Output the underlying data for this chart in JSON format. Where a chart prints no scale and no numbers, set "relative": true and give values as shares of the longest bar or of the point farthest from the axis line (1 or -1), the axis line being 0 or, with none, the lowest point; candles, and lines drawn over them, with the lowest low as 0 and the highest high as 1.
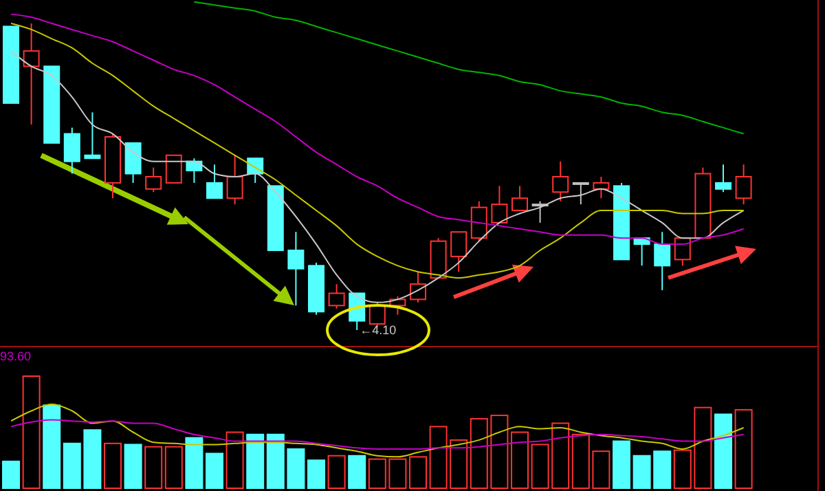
{
  "chart_data": [
    {
      "type": "candlestick",
      "relative": true,
      "categories": [
        null,
        null,
        null,
        null,
        null,
        null,
        null,
        null,
        null,
        null,
        null,
        null,
        null,
        null,
        null,
        null,
        null,
        null,
        null,
        null,
        null,
        null,
        null,
        null,
        null,
        null,
        null,
        null,
        null,
        null,
        null,
        null,
        null,
        null,
        null,
        null,
        null
      ],
      "ohlc": [
        [
          0.99,
          0.99,
          0.74,
          0.74
        ],
        [
          0.86,
          1,
          0.67,
          0.91
        ],
        [
          0.86,
          0.86,
          0.61,
          0.61
        ],
        [
          0.64,
          0.66,
          0.51,
          0.55
        ],
        [
          0.57,
          0.71,
          0.56,
          0.56
        ],
        [
          0.48,
          0.64,
          0.43,
          0.63
        ],
        [
          0.61,
          0.61,
          0.48,
          0.51
        ],
        [
          0.46,
          0.53,
          0.45,
          0.5
        ],
        [
          0.48,
          0.57,
          0.48,
          0.57
        ],
        [
          0.55,
          0.56,
          0.48,
          0.52
        ],
        [
          0.48,
          0.54,
          0.43,
          0.43
        ],
        [
          0.43,
          0.57,
          0.41,
          0.5
        ],
        [
          0.56,
          0.56,
          0.48,
          0.51
        ],
        [
          0.47,
          0.47,
          0.26,
          0.26
        ],
        [
          0.26,
          0.32,
          0.08,
          0.2
        ],
        [
          0.21,
          0.22,
          0.05,
          0.06
        ],
        [
          0.08,
          0.15,
          0.07,
          0.12
        ],
        [
          0.12,
          0.12,
          0,
          0.03
        ],
        [
          0.02,
          0.09,
          0.01,
          0.08
        ],
        [
          0.08,
          0.11,
          0.05,
          0.1
        ],
        [
          0.1,
          0.19,
          0.09,
          0.15
        ],
        [
          0.17,
          0.3,
          0.17,
          0.29
        ],
        [
          0.24,
          0.32,
          0.19,
          0.32
        ],
        [
          0.3,
          0.42,
          0.29,
          0.4
        ],
        [
          0.35,
          0.47,
          0.35,
          0.41
        ],
        [
          0.39,
          0.47,
          0.39,
          0.43
        ],
        [
          0.41,
          0.42,
          0.35,
          0.41
        ],
        [
          0.45,
          0.55,
          0.42,
          0.5
        ],
        [
          0.48,
          0.48,
          0.41,
          0.48
        ],
        [
          0.46,
          0.5,
          0.43,
          0.48
        ],
        [
          0.47,
          0.48,
          0.23,
          0.23
        ],
        [
          0.3,
          0.3,
          0.21,
          0.28
        ],
        [
          0.28,
          0.32,
          0.13,
          0.21
        ],
        [
          0.23,
          0.3,
          0.21,
          0.3
        ],
        [
          0.3,
          0.53,
          0.3,
          0.51
        ],
        [
          0.48,
          0.54,
          0.45,
          0.46
        ],
        [
          0.43,
          0.54,
          0.41,
          0.5
        ]
      ],
      "series": [
        {
          "type": "line",
          "color": "#c8c8c8",
          "values": [
            0.91,
            0.86,
            0.83,
            0.76,
            0.67,
            0.64,
            0.58,
            0.55,
            0.55,
            0.55,
            0.51,
            0.5,
            0.51,
            0.45,
            0.37,
            0.28,
            0.18,
            0.11,
            0.09,
            0.1,
            0.13,
            0.17,
            0.22,
            0.29,
            0.35,
            0.38,
            0.4,
            0.43,
            0.44,
            0.46,
            0.43,
            0.39,
            0.35,
            0.3,
            0.3,
            0.35,
            0.39
          ]
        },
        {
          "type": "line",
          "color": "#c8c800",
          "values": [
            1.0,
            0.98,
            0.95,
            0.92,
            0.87,
            0.83,
            0.78,
            0.73,
            0.69,
            0.65,
            0.61,
            0.57,
            0.53,
            0.49,
            0.44,
            0.39,
            0.34,
            0.28,
            0.24,
            0.21,
            0.19,
            0.18,
            0.17,
            0.18,
            0.19,
            0.21,
            0.26,
            0.3,
            0.35,
            0.39,
            0.39,
            0.39,
            0.39,
            0.38,
            0.38,
            0.39,
            0.39
          ]
        },
        {
          "type": "line",
          "color": "#c800c8",
          "values": [
            1.03,
            1.02,
            1.0,
            0.98,
            0.96,
            0.94,
            0.91,
            0.88,
            0.85,
            0.83,
            0.8,
            0.76,
            0.72,
            0.68,
            0.63,
            0.58,
            0.54,
            0.5,
            0.47,
            0.43,
            0.4,
            0.37,
            0.36,
            0.35,
            0.34,
            0.33,
            0.32,
            0.31,
            0.31,
            0.31,
            0.3,
            0.3,
            0.28,
            0.28,
            0.3,
            0.31,
            0.33
          ]
        },
        {
          "type": "line",
          "color": "#00b400",
          "values": [
            null,
            null,
            null,
            null,
            null,
            null,
            null,
            null,
            null,
            1.07,
            1.06,
            1.05,
            1.04,
            1.02,
            1.01,
            0.99,
            0.97,
            0.95,
            0.93,
            0.91,
            0.89,
            0.87,
            0.85,
            0.84,
            0.83,
            0.81,
            0.8,
            0.78,
            0.77,
            0.76,
            0.74,
            0.73,
            0.71,
            0.7,
            0.68,
            0.66,
            0.64
          ]
        }
      ],
      "annotations": [
        "←4.10"
      ]
    },
    {
      "type": "bar",
      "relative": true,
      "categories": [
        null,
        null,
        null,
        null,
        null,
        null,
        null,
        null,
        null,
        null,
        null,
        null,
        null,
        null,
        null,
        null,
        null,
        null,
        null,
        null,
        null,
        null,
        null,
        null,
        null,
        null,
        null,
        null,
        null,
        null,
        null,
        null,
        null,
        null,
        null,
        null,
        null
      ],
      "series": [
        {
          "type": "bar",
          "values": [
            0.24,
            1,
            0.74,
            0.4,
            0.52,
            0.4,
            0.39,
            0.37,
            0.37,
            0.45,
            0.31,
            0.5,
            0.48,
            0.48,
            0.35,
            0.25,
            0.29,
            0.29,
            0.26,
            0.26,
            0.28,
            0.55,
            0.43,
            0.62,
            0.65,
            0.5,
            0.39,
            0.58,
            0.48,
            0.33,
            0.42,
            0.29,
            0.33,
            0.34,
            0.72,
            0.66,
            0.7
          ],
          "colors": [
            "#54ffff",
            "#ff3232",
            "#54ffff",
            "#54ffff",
            "#54ffff",
            "#ff3232",
            "#54ffff",
            "#ff3232",
            "#ff3232",
            "#54ffff",
            "#54ffff",
            "#ff3232",
            "#54ffff",
            "#54ffff",
            "#54ffff",
            "#54ffff",
            "#ff3232",
            "#54ffff",
            "#ff3232",
            "#ff3232",
            "#ff3232",
            "#ff3232",
            "#ff3232",
            "#ff3232",
            "#ff3232",
            "#ff3232",
            "#ff3232",
            "#ff3232",
            "#ff3232",
            "#ff3232",
            "#54ffff",
            "#54ffff",
            "#54ffff",
            "#ff3232",
            "#ff3232",
            "#54ffff",
            "#ff3232"
          ]
        },
        {
          "type": "line",
          "color": "#c8c800",
          "values": [
            0.6,
            0.69,
            0.75,
            0.69,
            0.58,
            0.6,
            0.5,
            0.41,
            0.4,
            0.39,
            0.39,
            0.4,
            0.41,
            0.41,
            0.4,
            0.39,
            0.36,
            0.33,
            0.29,
            0.28,
            0.32,
            0.36,
            0.39,
            0.43,
            0.5,
            0.55,
            0.53,
            0.54,
            0.5,
            0.47,
            0.45,
            0.42,
            0.4,
            0.35,
            0.42,
            0.47,
            0.54
          ]
        },
        {
          "type": "line",
          "color": "#c800c8",
          "values": [
            0.55,
            0.59,
            0.61,
            0.6,
            0.59,
            0.6,
            0.58,
            0.58,
            0.53,
            0.48,
            0.45,
            0.42,
            0.42,
            0.42,
            0.42,
            0.4,
            0.38,
            0.36,
            0.35,
            0.35,
            0.35,
            0.36,
            0.36,
            0.37,
            0.39,
            0.41,
            0.42,
            0.45,
            0.47,
            0.48,
            0.47,
            0.46,
            0.44,
            0.42,
            0.42,
            0.45,
            0.48
          ]
        }
      ],
      "annotations": [
        "93.60"
      ]
    }
  ]
}
